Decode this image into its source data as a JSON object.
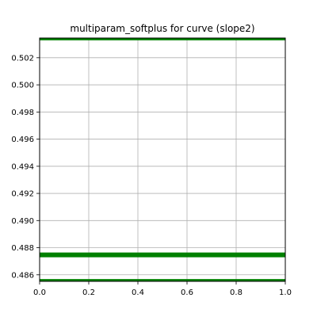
{
  "chart_data": {
    "type": "line",
    "title": "multiparam_softplus for curve (slope2)",
    "xlabel": "",
    "ylabel": "",
    "xlim": [
      0.0,
      1.0
    ],
    "ylim": [
      0.48552,
      0.50345
    ],
    "grid": true,
    "x_ticks": [
      0.0,
      0.2,
      0.4,
      0.6,
      0.8,
      1.0
    ],
    "x_tick_labels": [
      "0.0",
      "0.2",
      "0.4",
      "0.6",
      "0.8",
      "1.0"
    ],
    "y_ticks": [
      0.486,
      0.488,
      0.49,
      0.492,
      0.494,
      0.496,
      0.498,
      0.5,
      0.502
    ],
    "y_tick_labels": [
      "0.486",
      "0.488",
      "0.490",
      "0.492",
      "0.494",
      "0.496",
      "0.498",
      "0.500",
      "0.502"
    ],
    "line_color": "#008000",
    "grid_color": "#b0b0b0",
    "series": [
      {
        "x": [
          0.0,
          1.0
        ],
        "y": [
          0.50337,
          0.50337
        ],
        "weight": "thin"
      },
      {
        "x": [
          0.0,
          1.0
        ],
        "y": [
          0.48747,
          0.48747
        ],
        "weight": "thick"
      },
      {
        "x": [
          0.0,
          1.0
        ],
        "y": [
          0.4856,
          0.4856
        ],
        "weight": "thin"
      }
    ]
  }
}
